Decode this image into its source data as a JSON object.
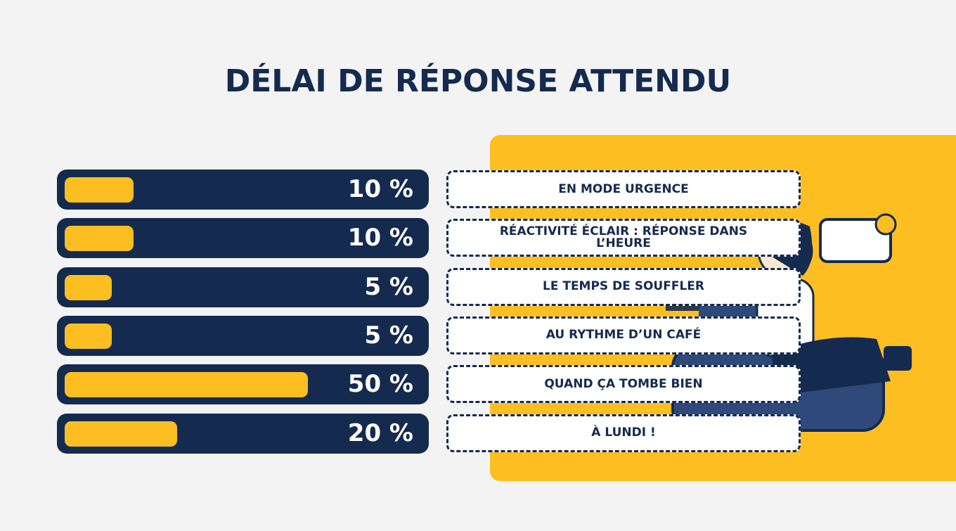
{
  "chart_data": {
    "type": "bar",
    "orientation": "horizontal",
    "title": "DÉLAI DE RÉPONSE ATTENDU",
    "categories": [
      "EN MODE URGENCE",
      "RÉACTIVITÉ ÉCLAIR : RÉPONSE DANS L’HEURE",
      "LE TEMPS DE SOUFFLER",
      "AU RYTHME D’UN CAFÉ",
      "QUAND ÇA TOMBE BIEN",
      "À LUNDI !"
    ],
    "values": [
      10,
      10,
      5,
      5,
      50,
      20
    ],
    "value_labels": [
      "10 %",
      "10 %",
      "5 %",
      "5 %",
      "50 %",
      "20 %"
    ],
    "color": "#fdbe21",
    "track_color": "#152a4f"
  }
}
